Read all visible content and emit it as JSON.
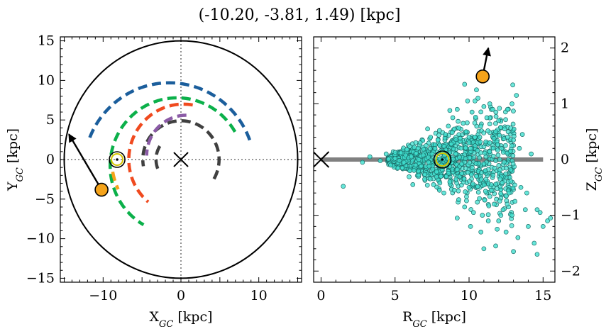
{
  "figure": {
    "title": "(-10.20, -3.81, 1.49) [kpc]"
  },
  "chart_data": [
    {
      "type": "scatter",
      "panel": "left",
      "xlabel": "X_GC [kpc]",
      "ylabel": "Y_GC [kpc]",
      "xlim": [
        -15.5,
        15.5
      ],
      "ylim": [
        -15.5,
        15.5
      ],
      "xticks": [
        -10,
        -5,
        0,
        5,
        10
      ],
      "xticklabels": [
        "−10",
        "",
        "0",
        "",
        "10"
      ],
      "yticks": [
        -15,
        -10,
        -5,
        0,
        5,
        10,
        15
      ],
      "yticklabels": [
        "−15",
        "−10",
        "−5",
        "0",
        "5",
        "10",
        "15"
      ],
      "circle_radius": 15,
      "galactic_center": [
        0,
        0
      ],
      "sun": [
        -8.2,
        0
      ],
      "star": {
        "x": -10.2,
        "y": -3.81,
        "color": "#f5a31a"
      },
      "star_arrow_end": [
        -14.4,
        3.2
      ],
      "arcs": [
        {
          "radius": 3.2,
          "theta_start": 148,
          "theta_end": 207,
          "color": "#404040"
        },
        {
          "radius": 4.9,
          "theta_start": -30,
          "theta_end": 190,
          "color": "#404040"
        },
        {
          "radius": 5.1,
          "theta_start": 90,
          "theta_end": 180,
          "color": "#8b5ba6",
          "center": [
            0.7,
            0.5
          ]
        },
        {
          "radius": 7.0,
          "theta_start": 80,
          "theta_end": 230,
          "color": "#f04a1f",
          "center": [
            0.3,
            0
          ]
        },
        {
          "radius": 8.6,
          "theta_start": 30,
          "theta_end": 240,
          "color": "#0bb04a",
          "center": [
            -0.5,
            -0.8
          ]
        },
        {
          "radius": 8.9,
          "theta_start": 190,
          "theta_end": 205,
          "color": "#f5a31a",
          "center": [
            0,
            0
          ]
        },
        {
          "radius": 11.0,
          "theta_start": 20,
          "theta_end": 160,
          "color": "#1b5e9c",
          "center": [
            -1.5,
            -1.3
          ]
        }
      ]
    },
    {
      "type": "scatter",
      "panel": "right",
      "xlabel": "R_GC [kpc]",
      "ylabel": "Z_GC [kpc]",
      "xlim": [
        -0.5,
        15.8
      ],
      "ylim": [
        -2.2,
        2.2
      ],
      "xticks": [
        0,
        5,
        10,
        15
      ],
      "xticklabels": [
        "0",
        "5",
        "10",
        "15"
      ],
      "yticks": [
        -2,
        -1,
        0,
        1,
        2
      ],
      "yticklabels": [
        "−2",
        "−1",
        "0",
        "1",
        "2"
      ],
      "disk": {
        "r_min": 0,
        "r_max": 15,
        "z": 0,
        "color": "#808080"
      },
      "sun": [
        8.2,
        0
      ],
      "galactic_center": [
        0,
        0
      ],
      "star": {
        "x": 10.92,
        "y": 1.49,
        "color": "#f5a31a"
      },
      "star_arrow_end": [
        11.3,
        2.0
      ],
      "points_color": "#40e0d0",
      "points": [
        [
          1.5,
          -0.48
        ],
        [
          2.8,
          -0.05
        ],
        [
          3.3,
          0.05
        ],
        [
          4.0,
          -0.02
        ],
        [
          4.4,
          0.1
        ],
        [
          4.7,
          -0.1
        ],
        [
          5.0,
          0.02
        ],
        [
          5.2,
          -0.15
        ],
        [
          5.4,
          0.12
        ],
        [
          5.6,
          -0.05
        ],
        [
          5.8,
          0.18
        ],
        [
          6.0,
          -0.2
        ],
        [
          6.1,
          0.05
        ],
        [
          6.3,
          0.22
        ],
        [
          6.4,
          -0.1
        ],
        [
          6.6,
          -0.28
        ],
        [
          6.7,
          0.3
        ],
        [
          6.9,
          0.08
        ],
        [
          7.0,
          -0.35
        ],
        [
          7.1,
          0.25
        ],
        [
          7.3,
          -0.12
        ],
        [
          7.4,
          0.4
        ],
        [
          7.5,
          0.1
        ],
        [
          7.6,
          -0.45
        ],
        [
          7.7,
          0.2
        ],
        [
          7.8,
          -0.22
        ],
        [
          7.9,
          0.35
        ],
        [
          8.0,
          0.52
        ],
        [
          8.1,
          -0.3
        ],
        [
          8.2,
          0.15
        ],
        [
          8.3,
          -0.6
        ],
        [
          8.4,
          0.45
        ],
        [
          8.5,
          -0.1
        ],
        [
          8.6,
          0.6
        ],
        [
          8.7,
          -0.4
        ],
        [
          8.8,
          0.28
        ],
        [
          8.9,
          0.75
        ],
        [
          9.0,
          -0.55
        ],
        [
          9.1,
          0.1
        ],
        [
          9.2,
          0.9
        ],
        [
          9.3,
          -0.72
        ],
        [
          9.4,
          0.38
        ],
        [
          9.5,
          -0.25
        ],
        [
          9.6,
          0.65
        ],
        [
          9.7,
          -0.85
        ],
        [
          9.8,
          0.5
        ],
        [
          9.9,
          1.05
        ],
        [
          10.0,
          -0.5
        ],
        [
          10.1,
          0.2
        ],
        [
          10.2,
          0.85
        ],
        [
          10.3,
          -0.95
        ],
        [
          10.4,
          0.4
        ],
        [
          10.5,
          -0.3
        ],
        [
          10.6,
          1.1
        ],
        [
          10.7,
          -0.7
        ],
        [
          10.8,
          0.6
        ],
        [
          10.9,
          -1.0
        ],
        [
          11.0,
          0.95
        ],
        [
          11.1,
          -0.2
        ],
        [
          11.2,
          0.75
        ],
        [
          11.3,
          -1.1
        ],
        [
          11.4,
          0.3
        ],
        [
          11.5,
          -0.55
        ],
        [
          11.6,
          0.9
        ],
        [
          11.7,
          -0.8
        ],
        [
          11.8,
          0.5
        ],
        [
          11.9,
          -1.25
        ],
        [
          12.0,
          0.7
        ],
        [
          12.1,
          -0.35
        ],
        [
          12.2,
          0.2
        ],
        [
          12.3,
          -0.9
        ],
        [
          12.4,
          0.55
        ],
        [
          12.5,
          -1.3
        ],
        [
          12.6,
          0.4
        ],
        [
          12.7,
          -0.6
        ],
        [
          12.8,
          0.15
        ],
        [
          12.9,
          -1.0
        ],
        [
          13.0,
          0.35
        ],
        [
          13.1,
          -0.75
        ],
        [
          13.2,
          1.15
        ],
        [
          13.3,
          -1.4
        ],
        [
          13.4,
          0.2
        ],
        [
          13.5,
          -0.5
        ],
        [
          13.6,
          0.45
        ],
        [
          13.8,
          -0.9
        ],
        [
          14.0,
          -1.2
        ],
        [
          14.2,
          0.1
        ],
        [
          14.4,
          -1.5
        ],
        [
          14.6,
          -0.9
        ],
        [
          14.8,
          -0.95
        ],
        [
          15.0,
          -1.2
        ],
        [
          15.3,
          -1.1
        ],
        [
          15.5,
          -1.05
        ],
        [
          10.5,
          1.25
        ],
        [
          9.7,
          1.35
        ],
        [
          11.4,
          1.0
        ],
        [
          12.6,
          0.9
        ],
        [
          7.2,
          0.55
        ],
        [
          6.2,
          -0.45
        ],
        [
          9.2,
          -1.05
        ],
        [
          10.8,
          -1.3
        ],
        [
          11.8,
          -1.55
        ],
        [
          13.0,
          -1.65
        ],
        [
          11.0,
          -1.6
        ],
        [
          8.0,
          -0.55
        ],
        [
          8.7,
          0.88
        ],
        [
          10.1,
          -1.2
        ],
        [
          12.0,
          -1.1
        ],
        [
          13.9,
          -0.6
        ],
        [
          14.6,
          -1.7
        ],
        [
          12.9,
          1.0
        ],
        [
          10.4,
          1.05
        ]
      ]
    }
  ]
}
